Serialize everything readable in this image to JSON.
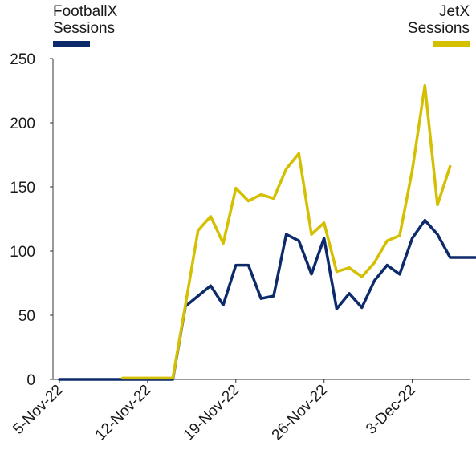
{
  "legend": [
    {
      "label_line1": "FootballX",
      "label_line2": "Sessions",
      "color": "#0d2a6b"
    },
    {
      "label_line1": "JetX",
      "label_line2": "Sessions",
      "color": "#d4c000"
    }
  ],
  "chart_data": {
    "type": "line",
    "x_start": "5-Nov-22",
    "x_tick_labels": [
      "5-Nov-22",
      "12-Nov-22",
      "19-Nov-22",
      "26-Nov-22",
      "3-Dec-22"
    ],
    "x_tick_dates": [
      "2022-11-05",
      "2022-11-12",
      "2022-11-19",
      "2022-11-26",
      "2022-12-03"
    ],
    "ylim": [
      0,
      250
    ],
    "y_ticks": [
      0,
      50,
      100,
      150,
      200,
      250
    ],
    "grid": false,
    "legend_position": "top",
    "series": [
      {
        "name": "FootballX Sessions",
        "color": "#0d2a6b",
        "dates": [
          "2022-11-05",
          "2022-11-06",
          "2022-11-07",
          "2022-11-08",
          "2022-11-09",
          "2022-11-10",
          "2022-11-11",
          "2022-11-12",
          "2022-11-13",
          "2022-11-14",
          "2022-11-15",
          "2022-11-16",
          "2022-11-17",
          "2022-11-18",
          "2022-11-19",
          "2022-11-20",
          "2022-11-21",
          "2022-11-22",
          "2022-11-23",
          "2022-11-24",
          "2022-11-25",
          "2022-11-26",
          "2022-11-27",
          "2022-11-28",
          "2022-11-29",
          "2022-11-30",
          "2022-12-01",
          "2022-12-02",
          "2022-12-03",
          "2022-12-04",
          "2022-12-05",
          "2022-12-06",
          "2022-12-07",
          "2022-12-08"
        ],
        "values": [
          0,
          0,
          0,
          0,
          0,
          0,
          0,
          0,
          0,
          0,
          57,
          65,
          73,
          58,
          89,
          89,
          63,
          65,
          113,
          108,
          82,
          110,
          55,
          67,
          56,
          77,
          89,
          82,
          110,
          124,
          113,
          95,
          95,
          95
        ]
      },
      {
        "name": "JetX Sessions",
        "color": "#d4c000",
        "dates": [
          "2022-11-10",
          "2022-11-11",
          "2022-11-12",
          "2022-11-13",
          "2022-11-14",
          "2022-11-15",
          "2022-11-16",
          "2022-11-17",
          "2022-11-18",
          "2022-11-19",
          "2022-11-20",
          "2022-11-21",
          "2022-11-22",
          "2022-11-23",
          "2022-11-24",
          "2022-11-25",
          "2022-11-26",
          "2022-11-27",
          "2022-11-28",
          "2022-11-29",
          "2022-11-30",
          "2022-12-01",
          "2022-12-02",
          "2022-12-03",
          "2022-12-04",
          "2022-12-05",
          "2022-12-06"
        ],
        "values": [
          1,
          1,
          1,
          1,
          1,
          58,
          116,
          127,
          106,
          149,
          139,
          144,
          141,
          164,
          176,
          113,
          122,
          84,
          87,
          80,
          91,
          108,
          112,
          163,
          229,
          136,
          166
        ]
      }
    ]
  }
}
